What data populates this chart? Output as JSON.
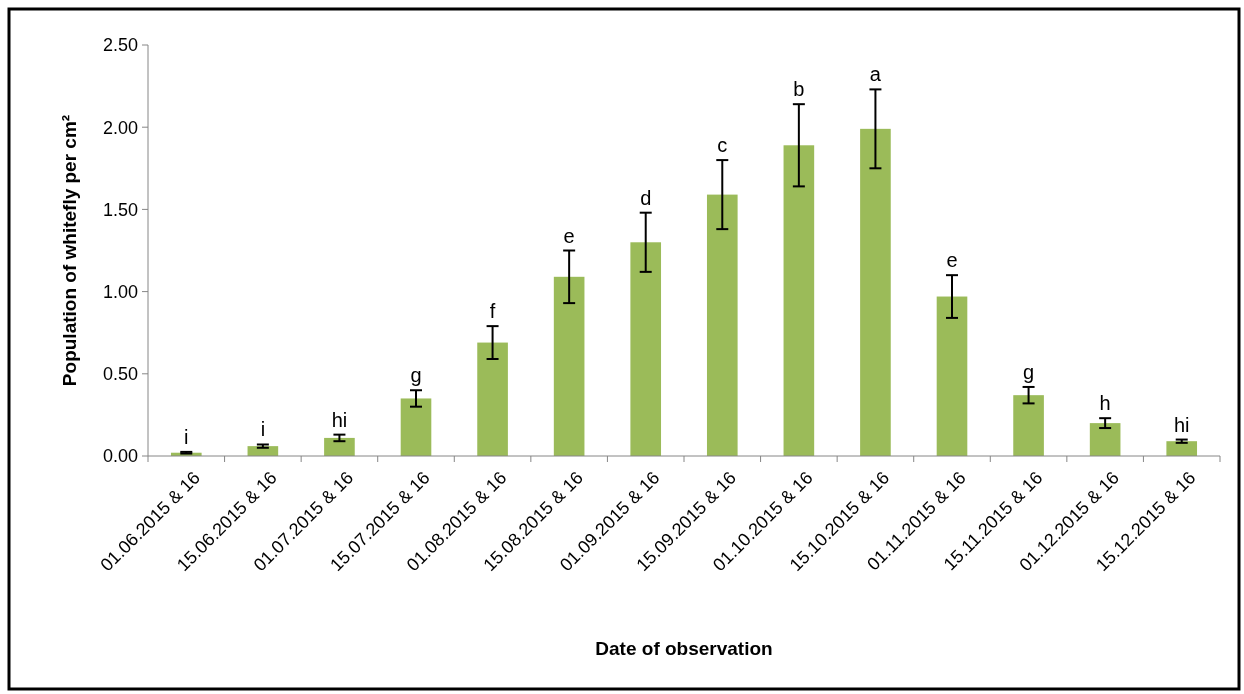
{
  "chart_data": {
    "type": "bar",
    "xlabel": "Date of observation",
    "ylabel": "Population of whitefly per cm²",
    "categories": [
      "01.06.2015 & 16",
      "15.06.2015 & 16",
      "01.07.2015 & 16",
      "15.07.2015 & 16",
      "01.08.2015 & 16",
      "15.08.2015 & 16",
      "01.09.2015 & 16",
      "15.09.2015 & 16",
      "01.10.2015 & 16",
      "15.10.2015 & 16",
      "01.11.2015 & 16",
      "15.11.2015 & 16",
      "01.12.2015 & 16",
      "15.12.2015 & 16"
    ],
    "values": [
      0.02,
      0.06,
      0.11,
      0.35,
      0.69,
      1.09,
      1.3,
      1.59,
      1.89,
      1.99,
      0.97,
      0.37,
      0.2,
      0.09
    ],
    "errors": [
      0.005,
      0.01,
      0.02,
      0.05,
      0.1,
      0.16,
      0.18,
      0.21,
      0.25,
      0.24,
      0.13,
      0.05,
      0.03,
      0.01
    ],
    "color": "#9bbb59",
    "ylim": [
      0,
      2.5
    ],
    "yticks": [
      {
        "value": 0,
        "label": "0.00"
      },
      {
        "value": 0.5,
        "label": "0.50"
      },
      {
        "value": 1,
        "label": "1.00"
      },
      {
        "value": 1.5,
        "label": "1.50"
      },
      {
        "value": 2,
        "label": "2.00"
      },
      {
        "value": 2.5,
        "label": "2.50"
      }
    ],
    "grid": false,
    "annotations": [
      "i",
      "i",
      "hi",
      "g",
      "f",
      "e",
      "d",
      "c",
      "b",
      "a",
      "e",
      "g",
      "h",
      "hi"
    ]
  }
}
